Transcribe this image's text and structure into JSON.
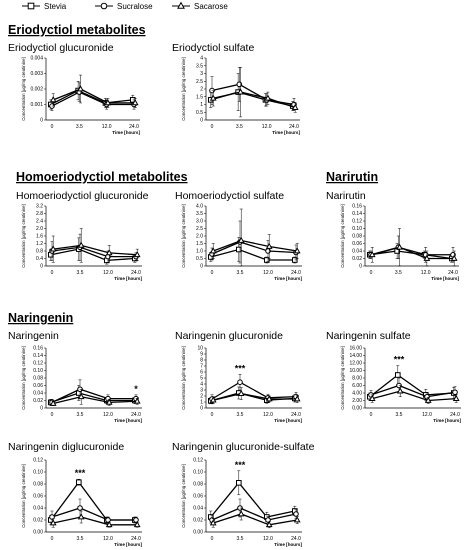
{
  "legend": [
    {
      "name": "Stevia",
      "marker": "square"
    },
    {
      "name": "Sucralose",
      "marker": "circle"
    },
    {
      "name": "Sacarose",
      "marker": "triangle"
    }
  ],
  "sections": [
    {
      "title": "Eriodyctiol metabolites"
    },
    {
      "title": "Homoeriodyctiol metabolites"
    },
    {
      "title": "Narirutin"
    },
    {
      "title": "Naringenin"
    }
  ],
  "chart_data": [
    {
      "type": "line",
      "title": "Eriodyctiol glucuronide",
      "ylabel": "Concentration [µg/mg creatinine]",
      "xlabel": "Time [hours]",
      "categories": [
        "0",
        "3.5",
        "12.0",
        "24.0"
      ],
      "ylim": [
        0,
        0.004
      ],
      "yticks": [
        "0",
        "0.001",
        "0.002",
        "0.003",
        "0.004"
      ],
      "series": [
        {
          "name": "Stevia",
          "values": [
            0.001,
            0.0019,
            0.0011,
            0.0013
          ],
          "err": [
            0.0003,
            0.0006,
            0.0003,
            0.0003
          ]
        },
        {
          "name": "Sucralose",
          "values": [
            0.0009,
            0.0018,
            0.001,
            0.001
          ],
          "err": [
            0.0003,
            0.0006,
            0.0003,
            0.0003
          ]
        },
        {
          "name": "Sacarose",
          "values": [
            0.0013,
            0.002,
            0.0011,
            0.0011
          ],
          "err": [
            0.0004,
            0.0009,
            0.0003,
            0.0003
          ]
        }
      ],
      "annotations": []
    },
    {
      "type": "line",
      "title": "Eriodyctiol sulfate",
      "ylabel": "Concentration [µg/mg creatinine]",
      "xlabel": "Time [hours]",
      "categories": [
        "0",
        "3.5",
        "12.0",
        "24.0"
      ],
      "ylim": [
        0,
        4
      ],
      "yticks": [
        "0",
        "0.5",
        "1",
        "1.5",
        "2",
        "2.5",
        "3",
        "3.5",
        "4"
      ],
      "series": [
        {
          "name": "Stevia",
          "values": [
            1.3,
            1.8,
            1.3,
            0.9
          ],
          "err": [
            0.5,
            1.2,
            0.4,
            0.3
          ]
        },
        {
          "name": "Sucralose",
          "values": [
            1.9,
            2.3,
            1.3,
            1.0
          ],
          "err": [
            0.9,
            1.1,
            0.4,
            0.4
          ]
        },
        {
          "name": "Sacarose",
          "values": [
            1.4,
            1.8,
            1.4,
            0.8
          ],
          "err": [
            0.5,
            1.6,
            0.4,
            0.3
          ]
        }
      ],
      "annotations": []
    },
    {
      "type": "line",
      "title": "Homoeriodyctiol glucuronide",
      "ylabel": "Concentration [µg/mg creatinine]",
      "xlabel": "Time [hours]",
      "categories": [
        "0",
        "3.5",
        "12.0",
        "24.0"
      ],
      "ylim": [
        0,
        3.2
      ],
      "yticks": [
        "0",
        "0.4",
        "0.8",
        "1.2",
        "1.6",
        "2.0",
        "2.4",
        "2.8",
        "3.2"
      ],
      "series": [
        {
          "name": "Stevia",
          "values": [
            0.6,
            0.9,
            0.3,
            0.4
          ],
          "err": [
            0.3,
            0.6,
            0.2,
            0.2
          ]
        },
        {
          "name": "Sucralose",
          "values": [
            0.8,
            1.0,
            0.5,
            0.5
          ],
          "err": [
            0.5,
            0.7,
            0.3,
            0.2
          ]
        },
        {
          "name": "Sacarose",
          "values": [
            0.9,
            1.1,
            0.7,
            0.6
          ],
          "err": [
            0.7,
            0.9,
            0.4,
            0.3
          ]
        }
      ],
      "annotations": []
    },
    {
      "type": "line",
      "title": "Homoeriodyctiol sulfate",
      "ylabel": "Concentration [µg/mg creatinine]",
      "xlabel": "Time [hours]",
      "categories": [
        "0",
        "3.5",
        "12.0",
        "24.0"
      ],
      "ylim": [
        0,
        4
      ],
      "yticks": [
        "0",
        "0.5",
        "1.0",
        "1.5",
        "2.0",
        "2.5",
        "3.0",
        "3.5",
        "4.0"
      ],
      "series": [
        {
          "name": "Stevia",
          "values": [
            0.6,
            1.1,
            0.4,
            0.4
          ],
          "err": [
            0.3,
            0.8,
            0.2,
            0.2
          ]
        },
        {
          "name": "Sucralose",
          "values": [
            0.8,
            1.6,
            1.0,
            0.9
          ],
          "err": [
            0.4,
            1.4,
            0.7,
            0.5
          ]
        },
        {
          "name": "Sacarose",
          "values": [
            1.0,
            1.7,
            1.3,
            1.0
          ],
          "err": [
            0.5,
            2.1,
            0.8,
            0.5
          ]
        }
      ],
      "annotations": []
    },
    {
      "type": "line",
      "title": "Narirutin",
      "ylabel": "Concentration [µg/mg creatinine]",
      "xlabel": "Time [hours]",
      "categories": [
        "0",
        "3.5",
        "12.0",
        "24.0"
      ],
      "ylim": [
        0,
        0.16
      ],
      "yticks": [
        "0",
        "0.02",
        "0.04",
        "0.06",
        "0.08",
        "0.10",
        "0.12",
        "0.14",
        "0.16"
      ],
      "series": [
        {
          "name": "Stevia",
          "values": [
            0.03,
            0.04,
            0.03,
            0.02
          ],
          "err": [
            0.01,
            0.02,
            0.01,
            0.01
          ]
        },
        {
          "name": "Sucralose",
          "values": [
            0.03,
            0.05,
            0.03,
            0.03
          ],
          "err": [
            0.01,
            0.03,
            0.02,
            0.02
          ]
        },
        {
          "name": "Sacarose",
          "values": [
            0.03,
            0.05,
            0.02,
            0.02
          ],
          "err": [
            0.02,
            0.05,
            0.02,
            0.02
          ]
        }
      ],
      "annotations": []
    },
    {
      "type": "line",
      "title": "Naringenin",
      "ylabel": "Concentration [µg/mg creatinine]",
      "xlabel": "Time [hours]",
      "categories": [
        "0",
        "3.5",
        "12.0",
        "24.0"
      ],
      "ylim": [
        0,
        0.16
      ],
      "yticks": [
        "0",
        "0.02",
        "0.04",
        "0.06",
        "0.08",
        "0.10",
        "0.12",
        "0.14",
        "0.16"
      ],
      "series": [
        {
          "name": "Stevia",
          "values": [
            0.015,
            0.04,
            0.02,
            0.02
          ],
          "err": [
            0.008,
            0.02,
            0.008,
            0.008
          ]
        },
        {
          "name": "Sucralose",
          "values": [
            0.015,
            0.05,
            0.025,
            0.025
          ],
          "err": [
            0.008,
            0.025,
            0.01,
            0.01
          ]
        },
        {
          "name": "Sacarose",
          "values": [
            0.012,
            0.03,
            0.015,
            0.018
          ],
          "err": [
            0.006,
            0.02,
            0.008,
            0.008
          ]
        }
      ],
      "annotations": [
        {
          "x": "24.0",
          "text": "*"
        }
      ]
    },
    {
      "type": "line",
      "title": "Naringenin glucuronide",
      "ylabel": "Concentration [µg/mg creatinine]",
      "xlabel": "Time [hours]",
      "categories": [
        "0",
        "3.5",
        "12.0",
        "24.0"
      ],
      "ylim": [
        0,
        10
      ],
      "yticks": [
        "0",
        "1",
        "2",
        "3",
        "4",
        "5",
        "6",
        "7",
        "8",
        "9",
        "10"
      ],
      "series": [
        {
          "name": "Stevia",
          "values": [
            1.2,
            2.5,
            1.3,
            1.6
          ],
          "err": [
            0.5,
            1.0,
            0.5,
            0.6
          ]
        },
        {
          "name": "Sucralose",
          "values": [
            1.5,
            4.3,
            1.7,
            1.9
          ],
          "err": [
            0.7,
            1.3,
            0.6,
            0.7
          ]
        },
        {
          "name": "Sacarose",
          "values": [
            1.3,
            2.4,
            1.5,
            1.5
          ],
          "err": [
            0.6,
            1.0,
            0.5,
            0.6
          ]
        }
      ],
      "annotations": [
        {
          "x": "3.5",
          "text": "***"
        }
      ]
    },
    {
      "type": "line",
      "title": "Naringenin sulfate",
      "ylabel": "Concentration [µg/mg creatinine]",
      "xlabel": "Time [hours]",
      "categories": [
        "0",
        "3.5",
        "12.0",
        "24.0"
      ],
      "ylim": [
        0,
        16
      ],
      "yticks": [
        "0.00",
        "2.00",
        "4.00",
        "6.00",
        "8.00",
        "10.00",
        "12.00",
        "14.00",
        "16.00"
      ],
      "series": [
        {
          "name": "Stevia",
          "values": [
            3.0,
            8.8,
            3.5,
            4.0
          ],
          "err": [
            1.0,
            2.5,
            1.5,
            1.5
          ]
        },
        {
          "name": "Sucralose",
          "values": [
            3.5,
            6.0,
            3.0,
            4.2
          ],
          "err": [
            1.2,
            2.0,
            1.2,
            1.5
          ]
        },
        {
          "name": "Sacarose",
          "values": [
            2.5,
            4.5,
            2.0,
            2.5
          ],
          "err": [
            1.0,
            1.5,
            0.8,
            1.0
          ]
        }
      ],
      "annotations": [
        {
          "x": "3.5",
          "text": "***"
        }
      ]
    },
    {
      "type": "line",
      "title": "Naringenin diglucuronide",
      "ylabel": "Concentration [µg/mg creatinine]",
      "xlabel": "Time [hours]",
      "categories": [
        "0",
        "3.5",
        "12.0",
        "24.0"
      ],
      "ylim": [
        0,
        0.12
      ],
      "yticks": [
        "0.00",
        "0.02",
        "0.04",
        "0.06",
        "0.08",
        "0.10",
        "0.12"
      ],
      "series": [
        {
          "name": "Stevia",
          "values": [
            0.02,
            0.083,
            0.02,
            0.02
          ],
          "err": [
            0.008,
            0.005,
            0.005,
            0.005
          ]
        },
        {
          "name": "Sucralose",
          "values": [
            0.025,
            0.04,
            0.02,
            0.02
          ],
          "err": [
            0.01,
            0.015,
            0.005,
            0.005
          ]
        },
        {
          "name": "Sacarose",
          "values": [
            0.015,
            0.025,
            0.012,
            0.012
          ],
          "err": [
            0.007,
            0.01,
            0.004,
            0.004
          ]
        }
      ],
      "annotations": [
        {
          "x": "3.5",
          "text": "***"
        }
      ]
    },
    {
      "type": "line",
      "title": "Naringenin glucuronide-sulfate",
      "ylabel": "Concentration [µg/mg creatinine]",
      "xlabel": "Time [hours]",
      "categories": [
        "0",
        "3.5",
        "12.0",
        "24.0"
      ],
      "ylim": [
        0,
        0.12
      ],
      "yticks": [
        "0.00",
        "0.02",
        "0.04",
        "0.06",
        "0.08",
        "0.10",
        "0.12"
      ],
      "series": [
        {
          "name": "Stevia",
          "values": [
            0.025,
            0.082,
            0.025,
            0.035
          ],
          "err": [
            0.01,
            0.02,
            0.008,
            0.008
          ]
        },
        {
          "name": "Sucralose",
          "values": [
            0.02,
            0.04,
            0.02,
            0.03
          ],
          "err": [
            0.008,
            0.015,
            0.006,
            0.008
          ]
        },
        {
          "name": "Sacarose",
          "values": [
            0.015,
            0.03,
            0.012,
            0.02
          ],
          "err": [
            0.007,
            0.01,
            0.005,
            0.006
          ]
        }
      ],
      "annotations": [
        {
          "x": "3.5",
          "text": "***"
        }
      ]
    }
  ]
}
